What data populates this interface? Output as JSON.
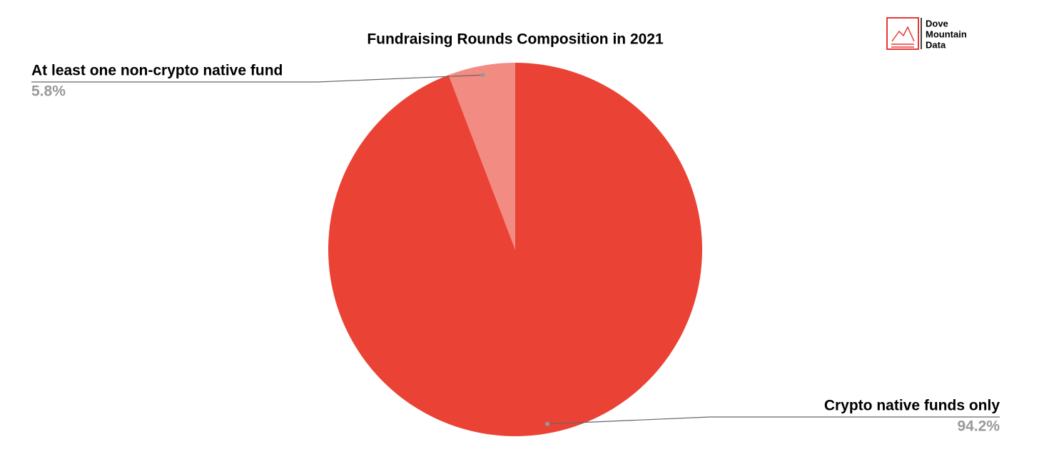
{
  "chart_data": {
    "type": "pie",
    "title": "Fundraising Rounds Composition in 2021",
    "categories": [
      "Crypto native funds only",
      "At least one non-crypto native fund"
    ],
    "values": [
      94.2,
      5.8
    ],
    "value_labels": [
      "94.2%",
      "5.8%"
    ],
    "colors": [
      "#ea4335",
      "#f28b82"
    ]
  },
  "logo": {
    "lines": [
      "Dove",
      "Mountain",
      "Data"
    ]
  }
}
